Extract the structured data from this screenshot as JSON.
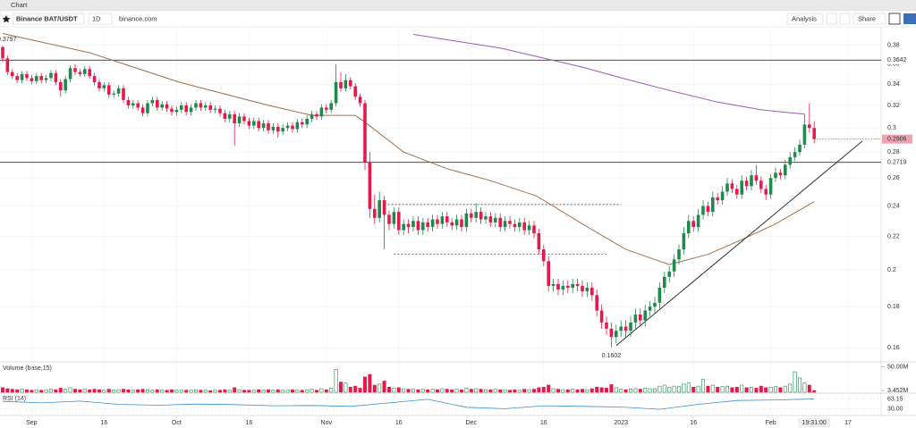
{
  "toolbar": {
    "window_title": "Chart",
    "symbol": "Binance BAT/USDT",
    "interval": "1D",
    "source": "binance.com",
    "analysis": "Analysis",
    "share": "Share"
  },
  "chart_data": {
    "type": "candlestick",
    "ohlc": [
      [
        0.378,
        0.3797,
        0.362,
        0.366
      ],
      [
        0.366,
        0.369,
        0.349,
        0.352
      ],
      [
        0.352,
        0.355,
        0.345,
        0.348
      ],
      [
        0.348,
        0.351,
        0.341,
        0.344
      ],
      [
        0.344,
        0.353,
        0.341,
        0.35
      ],
      [
        0.35,
        0.353,
        0.343,
        0.346
      ],
      [
        0.346,
        0.349,
        0.34,
        0.343
      ],
      [
        0.343,
        0.351,
        0.34,
        0.348
      ],
      [
        0.348,
        0.351,
        0.341,
        0.344
      ],
      [
        0.344,
        0.349,
        0.341,
        0.346
      ],
      [
        0.346,
        0.354,
        0.343,
        0.351
      ],
      [
        0.351,
        0.354,
        0.339,
        0.342
      ],
      [
        0.342,
        0.345,
        0.328,
        0.334
      ],
      [
        0.334,
        0.348,
        0.331,
        0.345
      ],
      [
        0.345,
        0.359,
        0.342,
        0.356
      ],
      [
        0.356,
        0.36,
        0.349,
        0.352
      ],
      [
        0.352,
        0.355,
        0.347,
        0.35
      ],
      [
        0.35,
        0.358,
        0.347,
        0.355
      ],
      [
        0.355,
        0.358,
        0.345,
        0.348
      ],
      [
        0.348,
        0.351,
        0.339,
        0.342
      ],
      [
        0.342,
        0.345,
        0.333,
        0.336
      ],
      [
        0.336,
        0.342,
        0.333,
        0.339
      ],
      [
        0.339,
        0.342,
        0.327,
        0.33
      ],
      [
        0.33,
        0.334,
        0.327,
        0.331
      ],
      [
        0.331,
        0.339,
        0.328,
        0.336
      ],
      [
        0.336,
        0.339,
        0.322,
        0.325
      ],
      [
        0.325,
        0.328,
        0.317,
        0.32
      ],
      [
        0.32,
        0.325,
        0.317,
        0.322
      ],
      [
        0.322,
        0.325,
        0.315,
        0.318
      ],
      [
        0.318,
        0.321,
        0.31,
        0.313
      ],
      [
        0.313,
        0.325,
        0.31,
        0.322
      ],
      [
        0.322,
        0.328,
        0.319,
        0.325
      ],
      [
        0.325,
        0.328,
        0.315,
        0.318
      ],
      [
        0.318,
        0.324,
        0.315,
        0.321
      ],
      [
        0.321,
        0.324,
        0.314,
        0.317
      ],
      [
        0.317,
        0.32,
        0.311,
        0.314
      ],
      [
        0.314,
        0.319,
        0.311,
        0.316
      ],
      [
        0.316,
        0.323,
        0.313,
        0.32
      ],
      [
        0.32,
        0.323,
        0.311,
        0.314
      ],
      [
        0.314,
        0.321,
        0.311,
        0.318
      ],
      [
        0.318,
        0.325,
        0.315,
        0.322
      ],
      [
        0.322,
        0.325,
        0.315,
        0.318
      ],
      [
        0.318,
        0.323,
        0.315,
        0.32
      ],
      [
        0.32,
        0.323,
        0.313,
        0.316
      ],
      [
        0.316,
        0.32,
        0.313,
        0.317
      ],
      [
        0.317,
        0.32,
        0.31,
        0.313
      ],
      [
        0.313,
        0.316,
        0.305,
        0.308
      ],
      [
        0.308,
        0.315,
        0.305,
        0.312
      ],
      [
        0.312,
        0.315,
        0.285,
        0.304
      ],
      [
        0.304,
        0.313,
        0.301,
        0.31
      ],
      [
        0.31,
        0.313,
        0.303,
        0.306
      ],
      [
        0.306,
        0.309,
        0.299,
        0.302
      ],
      [
        0.302,
        0.309,
        0.299,
        0.306
      ],
      [
        0.306,
        0.309,
        0.297,
        0.3
      ],
      [
        0.3,
        0.307,
        0.297,
        0.304
      ],
      [
        0.304,
        0.307,
        0.295,
        0.298
      ],
      [
        0.298,
        0.304,
        0.295,
        0.301
      ],
      [
        0.301,
        0.304,
        0.292,
        0.297
      ],
      [
        0.297,
        0.303,
        0.294,
        0.3
      ],
      [
        0.3,
        0.305,
        0.297,
        0.302
      ],
      [
        0.302,
        0.305,
        0.296,
        0.299
      ],
      [
        0.299,
        0.308,
        0.296,
        0.305
      ],
      [
        0.305,
        0.308,
        0.3,
        0.303
      ],
      [
        0.303,
        0.311,
        0.3,
        0.308
      ],
      [
        0.308,
        0.315,
        0.305,
        0.312
      ],
      [
        0.312,
        0.315,
        0.307,
        0.31
      ],
      [
        0.31,
        0.321,
        0.307,
        0.318
      ],
      [
        0.318,
        0.321,
        0.313,
        0.316
      ],
      [
        0.316,
        0.325,
        0.313,
        0.322
      ],
      [
        0.322,
        0.36,
        0.319,
        0.342
      ],
      [
        0.342,
        0.352,
        0.333,
        0.336
      ],
      [
        0.336,
        0.35,
        0.333,
        0.344
      ],
      [
        0.344,
        0.347,
        0.335,
        0.338
      ],
      [
        0.338,
        0.341,
        0.325,
        0.328
      ],
      [
        0.328,
        0.331,
        0.319,
        0.322
      ],
      [
        0.322,
        0.325,
        0.266,
        0.272
      ],
      [
        0.272,
        0.28,
        0.232,
        0.238
      ],
      [
        0.238,
        0.248,
        0.228,
        0.232
      ],
      [
        0.232,
        0.25,
        0.229,
        0.244
      ],
      [
        0.244,
        0.247,
        0.212,
        0.234
      ],
      [
        0.234,
        0.237,
        0.224,
        0.228
      ],
      [
        0.228,
        0.239,
        0.225,
        0.236
      ],
      [
        0.236,
        0.239,
        0.221,
        0.224
      ],
      [
        0.224,
        0.231,
        0.221,
        0.228
      ],
      [
        0.228,
        0.231,
        0.222,
        0.226
      ],
      [
        0.226,
        0.233,
        0.223,
        0.23
      ],
      [
        0.23,
        0.233,
        0.221,
        0.224
      ],
      [
        0.224,
        0.232,
        0.221,
        0.229
      ],
      [
        0.229,
        0.232,
        0.223,
        0.226
      ],
      [
        0.226,
        0.234,
        0.223,
        0.231
      ],
      [
        0.231,
        0.234,
        0.225,
        0.228
      ],
      [
        0.228,
        0.236,
        0.225,
        0.233
      ],
      [
        0.233,
        0.236,
        0.226,
        0.229
      ],
      [
        0.229,
        0.232,
        0.224,
        0.227
      ],
      [
        0.227,
        0.234,
        0.224,
        0.231
      ],
      [
        0.231,
        0.234,
        0.223,
        0.226
      ],
      [
        0.226,
        0.238,
        0.223,
        0.235
      ],
      [
        0.235,
        0.238,
        0.229,
        0.232
      ],
      [
        0.232,
        0.242,
        0.229,
        0.236
      ],
      [
        0.236,
        0.239,
        0.228,
        0.231
      ],
      [
        0.231,
        0.236,
        0.228,
        0.233
      ],
      [
        0.233,
        0.236,
        0.226,
        0.229
      ],
      [
        0.229,
        0.235,
        0.226,
        0.232
      ],
      [
        0.232,
        0.235,
        0.223,
        0.226
      ],
      [
        0.226,
        0.233,
        0.223,
        0.23
      ],
      [
        0.23,
        0.233,
        0.225,
        0.228
      ],
      [
        0.228,
        0.231,
        0.223,
        0.226
      ],
      [
        0.226,
        0.232,
        0.223,
        0.229
      ],
      [
        0.229,
        0.232,
        0.221,
        0.224
      ],
      [
        0.224,
        0.23,
        0.221,
        0.227
      ],
      [
        0.227,
        0.23,
        0.219,
        0.222
      ],
      [
        0.222,
        0.225,
        0.209,
        0.212
      ],
      [
        0.212,
        0.215,
        0.202,
        0.205
      ],
      [
        0.205,
        0.208,
        0.188,
        0.191
      ],
      [
        0.191,
        0.195,
        0.188,
        0.192
      ],
      [
        0.192,
        0.195,
        0.186,
        0.189
      ],
      [
        0.189,
        0.194,
        0.186,
        0.191
      ],
      [
        0.191,
        0.194,
        0.187,
        0.19
      ],
      [
        0.19,
        0.195,
        0.187,
        0.192
      ],
      [
        0.192,
        0.195,
        0.188,
        0.191
      ],
      [
        0.191,
        0.194,
        0.185,
        0.188
      ],
      [
        0.188,
        0.193,
        0.185,
        0.19
      ],
      [
        0.19,
        0.193,
        0.183,
        0.186
      ],
      [
        0.186,
        0.189,
        0.175,
        0.178
      ],
      [
        0.178,
        0.181,
        0.169,
        0.172
      ],
      [
        0.172,
        0.175,
        0.166,
        0.169
      ],
      [
        0.169,
        0.172,
        0.1602,
        0.165
      ],
      [
        0.165,
        0.171,
        0.162,
        0.168
      ],
      [
        0.168,
        0.173,
        0.165,
        0.17
      ],
      [
        0.17,
        0.173,
        0.165,
        0.168
      ],
      [
        0.168,
        0.175,
        0.165,
        0.172
      ],
      [
        0.172,
        0.179,
        0.169,
        0.176
      ],
      [
        0.176,
        0.179,
        0.17,
        0.173
      ],
      [
        0.173,
        0.181,
        0.17,
        0.178
      ],
      [
        0.178,
        0.183,
        0.175,
        0.18
      ],
      [
        0.18,
        0.185,
        0.177,
        0.182
      ],
      [
        0.182,
        0.193,
        0.179,
        0.19
      ],
      [
        0.19,
        0.199,
        0.187,
        0.196
      ],
      [
        0.196,
        0.202,
        0.193,
        0.199
      ],
      [
        0.199,
        0.209,
        0.196,
        0.206
      ],
      [
        0.206,
        0.215,
        0.203,
        0.212
      ],
      [
        0.212,
        0.226,
        0.209,
        0.222
      ],
      [
        0.222,
        0.234,
        0.219,
        0.23
      ],
      [
        0.23,
        0.233,
        0.223,
        0.226
      ],
      [
        0.226,
        0.238,
        0.223,
        0.234
      ],
      [
        0.234,
        0.244,
        0.231,
        0.24
      ],
      [
        0.24,
        0.243,
        0.233,
        0.236
      ],
      [
        0.236,
        0.25,
        0.233,
        0.246
      ],
      [
        0.246,
        0.249,
        0.241,
        0.244
      ],
      [
        0.244,
        0.254,
        0.241,
        0.25
      ],
      [
        0.25,
        0.26,
        0.247,
        0.256
      ],
      [
        0.256,
        0.259,
        0.249,
        0.252
      ],
      [
        0.252,
        0.255,
        0.245,
        0.248
      ],
      [
        0.248,
        0.262,
        0.245,
        0.258
      ],
      [
        0.258,
        0.261,
        0.251,
        0.254
      ],
      [
        0.254,
        0.266,
        0.251,
        0.262
      ],
      [
        0.262,
        0.27,
        0.255,
        0.258
      ],
      [
        0.258,
        0.261,
        0.249,
        0.252
      ],
      [
        0.252,
        0.255,
        0.244,
        0.248
      ],
      [
        0.248,
        0.263,
        0.245,
        0.26
      ],
      [
        0.26,
        0.268,
        0.257,
        0.264
      ],
      [
        0.264,
        0.267,
        0.259,
        0.262
      ],
      [
        0.262,
        0.274,
        0.259,
        0.27
      ],
      [
        0.27,
        0.28,
        0.267,
        0.276
      ],
      [
        0.276,
        0.284,
        0.273,
        0.28
      ],
      [
        0.28,
        0.29,
        0.277,
        0.286
      ],
      [
        0.286,
        0.312,
        0.283,
        0.303
      ],
      [
        0.303,
        0.322,
        0.296,
        0.3
      ],
      [
        0.3,
        0.306,
        0.287,
        0.2906
      ]
    ],
    "up_color": "#1f8a4c",
    "down_color": "#e5194b",
    "xlim": [
      -0.55,
      181.85
    ],
    "xticks": [
      {
        "value": 6,
        "label": "Sep"
      },
      {
        "value": 21,
        "label": "16"
      },
      {
        "value": 36,
        "label": "Oct"
      },
      {
        "value": 51,
        "label": "16"
      },
      {
        "value": 67,
        "label": "Nov"
      },
      {
        "value": 82,
        "label": "16"
      },
      {
        "value": 97,
        "label": "Dec"
      },
      {
        "value": 112,
        "label": "16"
      },
      {
        "value": 128,
        "label": "2023"
      },
      {
        "value": 143,
        "label": "16"
      },
      {
        "value": 159,
        "label": "Feb"
      },
      {
        "value": 175,
        "label": "17"
      }
    ],
    "cursor_time": "19:31:00",
    "ylim": [
      0.1537,
      0.4006
    ],
    "log_y": true,
    "yticks": [
      0.38,
      0.36,
      0.34,
      0.32,
      0.3,
      0.28,
      0.26,
      0.24,
      0.22,
      0.2,
      0.18,
      0.16
    ],
    "hlines": [
      0.3642,
      0.2719
    ],
    "hline_color": "#333333",
    "ma_lines": [
      {
        "color": "#9b59b6",
        "x": [
          85,
          103,
          120,
          129,
          138,
          148,
          157,
          166
        ],
        "values": [
          0.392,
          0.377,
          0.357,
          0.345,
          0.334,
          0.323,
          0.316,
          0.312
        ]
      },
      {
        "color": "#a0704a",
        "x": [
          0,
          18,
          36.5,
          55,
          64,
          73,
          75,
          83,
          92,
          101,
          110.5,
          120,
          129,
          138,
          146,
          153,
          160,
          168
        ],
        "values": [
          0.393,
          0.372,
          0.342,
          0.32,
          0.311,
          0.311,
          0.305,
          0.28,
          0.267,
          0.258,
          0.247,
          0.228,
          0.212,
          0.203,
          0.209,
          0.218,
          0.228,
          0.243
        ]
      }
    ],
    "trendline": {
      "color": "#333333",
      "x": [
        127,
        178
      ],
      "values": [
        0.161,
        0.289
      ]
    },
    "range_lines": [
      {
        "x": [
          79,
          128
        ],
        "values": [
          0.241,
          0.241
        ]
      },
      {
        "x": [
          81,
          125
        ],
        "values": [
          0.209,
          0.209
        ]
      }
    ],
    "volume": {
      "label": "Volume (base,15)",
      "ylim": [
        0,
        56
      ],
      "yticks": [
        {
          "value": 50,
          "label": "50.00M"
        },
        {
          "value": 3.452,
          "label": "3.452M"
        }
      ],
      "values": [
        9,
        7,
        6,
        5,
        6,
        5,
        4,
        5,
        4,
        5,
        6,
        5,
        8,
        6,
        9,
        6,
        5,
        6,
        5,
        6,
        5,
        4,
        6,
        4,
        5,
        6,
        5,
        4,
        5,
        6,
        5,
        4,
        5,
        4,
        4,
        5,
        4,
        5,
        4,
        4,
        5,
        4,
        4,
        3,
        4,
        4,
        5,
        4,
        9,
        5,
        4,
        4,
        4,
        5,
        4,
        5,
        4,
        5,
        4,
        4,
        5,
        4,
        4,
        5,
        6,
        4,
        7,
        5,
        8,
        45,
        20,
        18,
        10,
        12,
        8,
        30,
        35,
        14,
        16,
        22,
        10,
        8,
        9,
        7,
        6,
        6,
        5,
        6,
        5,
        6,
        5,
        7,
        6,
        5,
        6,
        5,
        8,
        6,
        7,
        6,
        5,
        5,
        6,
        5,
        5,
        4,
        5,
        4,
        6,
        5,
        6,
        9,
        10,
        14,
        7,
        6,
        5,
        5,
        6,
        5,
        6,
        5,
        7,
        10,
        9,
        8,
        15,
        9,
        6,
        5,
        6,
        7,
        6,
        8,
        7,
        7,
        12,
        14,
        10,
        12,
        11,
        16,
        18,
        10,
        12,
        25,
        12,
        14,
        10,
        11,
        12,
        9,
        10,
        14,
        9,
        10,
        8,
        12,
        9,
        10,
        11,
        9,
        12,
        16,
        40,
        28,
        18,
        14,
        3.452
      ]
    },
    "rsi": {
      "label": "RSI (14)",
      "color": "#3a8fd0",
      "ylim": [
        10,
        80
      ],
      "yticks": [
        63.15,
        {
          "value": 30,
          "label": "30.00"
        }
      ],
      "x": [
        0,
        8,
        16,
        24,
        32,
        40,
        48,
        56,
        64,
        72,
        80,
        88,
        96,
        104,
        112,
        120,
        128,
        136,
        144,
        152,
        160,
        168
      ],
      "values": [
        55,
        50,
        56,
        45,
        42,
        46,
        44,
        40,
        41,
        38,
        50,
        62,
        35,
        30,
        40,
        38,
        36,
        28,
        45,
        58,
        60,
        63.15
      ]
    }
  }
}
